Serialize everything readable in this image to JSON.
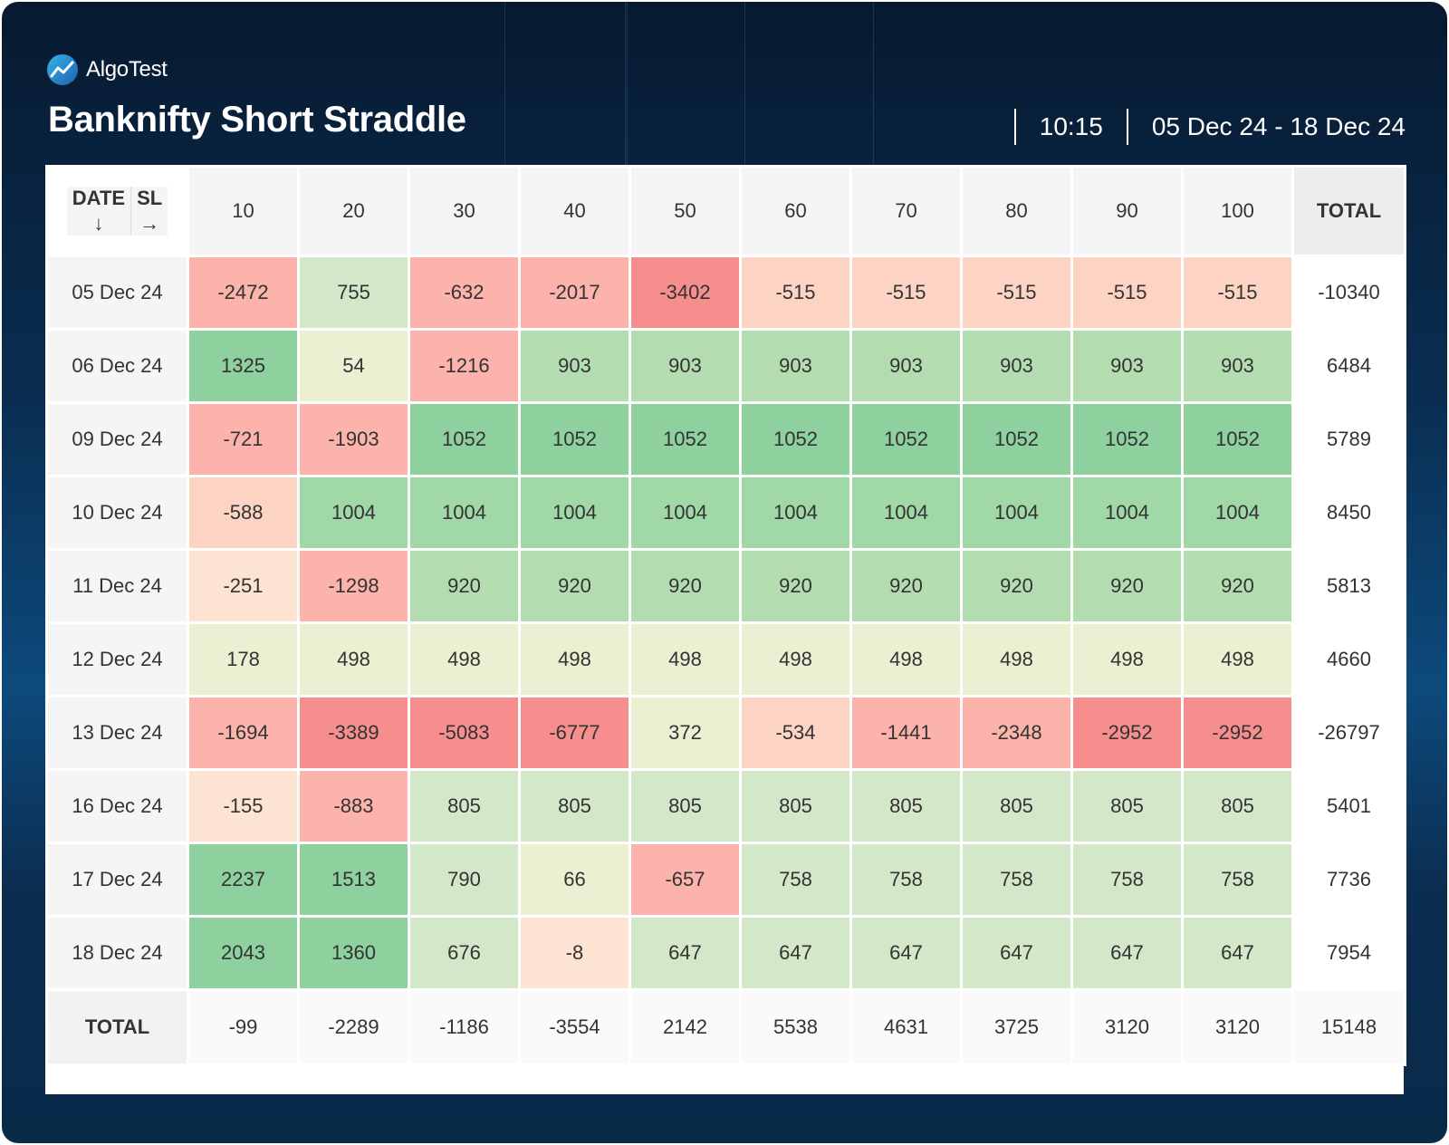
{
  "brand": {
    "name": "AlgoTest",
    "icon": "chart-logo-icon"
  },
  "title": "Banknifty Short Straddle",
  "time": "10:15",
  "date_range": "05 Dec 24 - 18 Dec 24",
  "table": {
    "corner": {
      "row_label": "DATE",
      "row_arrow": "↓",
      "col_label": "SL",
      "col_arrow": "→"
    },
    "total_label": "TOTAL"
  },
  "colors": {
    "neg_strong": "#f78e8e",
    "neg_mid": "#fbb3ab",
    "neg_light": "#fdd3c4",
    "neg_faint": "#fde3d2",
    "pos_faint": "#ecefd2",
    "pos_light": "#d3e8c9",
    "pos_mid": "#b3ddb1",
    "pos_strong": "#8fd09f"
  },
  "chart_data": {
    "type": "table",
    "title": "Banknifty Short Straddle",
    "xlabel": "SL",
    "ylabel": "DATE",
    "columns": [
      "10",
      "20",
      "30",
      "40",
      "50",
      "60",
      "70",
      "80",
      "90",
      "100"
    ],
    "rows": [
      {
        "date": "05 Dec 24",
        "values": [
          -2472,
          755,
          -632,
          -2017,
          -3402,
          -515,
          -515,
          -515,
          -515,
          -515
        ],
        "total": -10340
      },
      {
        "date": "06 Dec 24",
        "values": [
          1325,
          54,
          -1216,
          903,
          903,
          903,
          903,
          903,
          903,
          903
        ],
        "total": 6484
      },
      {
        "date": "09 Dec 24",
        "values": [
          -721,
          -1903,
          1052,
          1052,
          1052,
          1052,
          1052,
          1052,
          1052,
          1052
        ],
        "total": 5789
      },
      {
        "date": "10 Dec 24",
        "values": [
          -588,
          1004,
          1004,
          1004,
          1004,
          1004,
          1004,
          1004,
          1004,
          1004
        ],
        "total": 8450
      },
      {
        "date": "11 Dec 24",
        "values": [
          -251,
          -1298,
          920,
          920,
          920,
          920,
          920,
          920,
          920,
          920
        ],
        "total": 5813
      },
      {
        "date": "12 Dec 24",
        "values": [
          178,
          498,
          498,
          498,
          498,
          498,
          498,
          498,
          498,
          498
        ],
        "total": 4660
      },
      {
        "date": "13 Dec 24",
        "values": [
          -1694,
          -3389,
          -5083,
          -6777,
          372,
          -534,
          -1441,
          -2348,
          -2952,
          -2952
        ],
        "total": -26797
      },
      {
        "date": "16 Dec 24",
        "values": [
          -155,
          -883,
          805,
          805,
          805,
          805,
          805,
          805,
          805,
          805
        ],
        "total": 5401
      },
      {
        "date": "17 Dec 24",
        "values": [
          2237,
          1513,
          790,
          66,
          -657,
          758,
          758,
          758,
          758,
          758
        ],
        "total": 7736
      },
      {
        "date": "18 Dec 24",
        "values": [
          2043,
          1360,
          676,
          -8,
          647,
          647,
          647,
          647,
          647,
          647
        ],
        "total": 7954
      }
    ],
    "column_totals": [
      -99,
      -2289,
      -1186,
      -3554,
      2142,
      5538,
      4631,
      3725,
      3120,
      3120
    ],
    "grand_total": 15148
  }
}
